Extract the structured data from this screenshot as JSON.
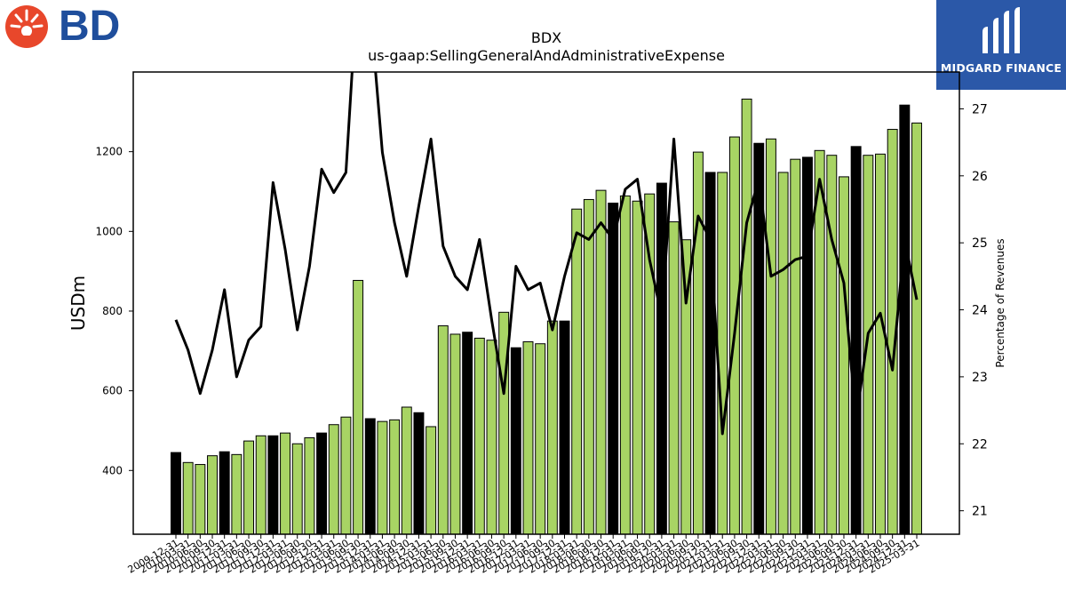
{
  "brand": {
    "company_logo_text": "BD",
    "publisher_logo_text": "MIDGARD FINANCE"
  },
  "colors": {
    "bar_fill": "#a8d464",
    "bar_highlight_fill": "#000000",
    "bar_stroke": "#000000",
    "line": "#000000",
    "publisher_bg": "#2b58a8",
    "company_text": "#1f4e9c",
    "company_icon": "#e8472b"
  },
  "chart_data": {
    "type": "bar",
    "title": "BDX",
    "subtitle": "us-gaap:SellingGeneralAndAdministrativeExpense",
    "ylabel": "USDm",
    "y2label": "Percentage of Revenues",
    "ylim": [
      240,
      1400
    ],
    "y2lim": [
      20.65,
      27.55
    ],
    "yticks": [
      400,
      600,
      800,
      1000,
      1200
    ],
    "y2ticks": [
      21,
      22,
      23,
      24,
      25,
      26,
      27
    ],
    "categories": [
      "2009-12-31",
      "2010-03-31",
      "2010-06-30",
      "2010-09-30",
      "2010-12-31",
      "2011-03-31",
      "2011-06-30",
      "2011-09-30",
      "2011-12-31",
      "2012-03-31",
      "2012-06-30",
      "2012-09-30",
      "2012-12-31",
      "2013-03-31",
      "2013-06-30",
      "2013-09-30",
      "2013-12-31",
      "2014-03-31",
      "2014-06-30",
      "2014-09-30",
      "2014-12-31",
      "2015-03-31",
      "2015-06-30",
      "2015-09-30",
      "2015-12-31",
      "2016-03-31",
      "2016-06-30",
      "2016-09-30",
      "2016-12-31",
      "2017-03-31",
      "2017-06-30",
      "2017-09-30",
      "2017-12-31",
      "2018-03-31",
      "2018-06-30",
      "2018-09-30",
      "2018-12-31",
      "2019-03-31",
      "2019-06-30",
      "2019-09-30",
      "2019-12-31",
      "2020-03-31",
      "2020-06-30",
      "2020-09-30",
      "2020-12-31",
      "2021-03-31",
      "2021-06-30",
      "2021-09-30",
      "2021-12-31",
      "2022-03-31",
      "2022-06-30",
      "2022-09-30",
      "2022-12-31",
      "2023-03-31",
      "2023-06-30",
      "2023-09-30",
      "2023-12-31",
      "2024-03-31",
      "2024-06-30",
      "2024-09-30",
      "2024-12-31",
      "2025-03-31"
    ],
    "xtick_labels": [
      "2009-12-31",
      "2010-03-31",
      "2010-06-30",
      "2010-09-30",
      "2010-12-31",
      "2011-03-31",
      "2011-06-30",
      "2011-09-30",
      "2011-12-31",
      "2012-03-31",
      "2012-06-30",
      "2012-09-30",
      "2012-12-31",
      "2013-03-31",
      "2013-06-30",
      "2013-09-30",
      "2013-12-31",
      "2014-03-31",
      "2014-06-30",
      "2014-09-30",
      "2014-12-31",
      "2015-03-31",
      "2015-06-30",
      "2015-09-30",
      "2015-12-31",
      "2016-03-31",
      "2016-06-30",
      "2016-09-30",
      "2016-12-31",
      "2017-03-31",
      "2017-06-30",
      "2017-09-30",
      "2017-12-31",
      "2018-03-31",
      "2018-06-30",
      "2018-09-30",
      "2018-12-31",
      "2019-03-31",
      "2019-06-30",
      "2019-09-30",
      "2019-12-31",
      "2020-03-31",
      "2020-06-30",
      "2020-09-30",
      "2020-12-31",
      "2021-03-31",
      "2021-06-30",
      "2021-09-30",
      "2021-12-31",
      "2022-03-31",
      "2022-06-30",
      "2022-09-30",
      "2022-12-31",
      "2023-03-31",
      "2023-06-30",
      "2023-09-30",
      "2023-12-31",
      "2024-03-31",
      "2024-06-30",
      "2024-09-30",
      "2024-12-31",
      "2025-03-31"
    ],
    "series": [
      {
        "axis": "left",
        "kind": "bar",
        "values": [
          445,
          420,
          415,
          437,
          447,
          440,
          474,
          487,
          487,
          494,
          467,
          482,
          494,
          515,
          534,
          877,
          530,
          523,
          527,
          559,
          545,
          510,
          763,
          742,
          747,
          732,
          727,
          797,
          708,
          723,
          718,
          775,
          775,
          1056,
          1080,
          1103,
          1071,
          1089,
          1076,
          1094,
          1121,
          1024,
          979,
          1199,
          1148,
          1148,
          1237,
          1332,
          1221,
          1232,
          1148,
          1181,
          1186,
          1203,
          1191,
          1137,
          1213,
          1191,
          1194,
          1256,
          1317,
          1272
        ],
        "highlight": [
          1,
          0,
          0,
          0,
          1,
          0,
          0,
          0,
          1,
          0,
          0,
          0,
          1,
          0,
          0,
          0,
          1,
          0,
          0,
          0,
          1,
          0,
          0,
          0,
          1,
          0,
          0,
          0,
          1,
          0,
          0,
          0,
          1,
          0,
          0,
          0,
          1,
          0,
          0,
          0,
          1,
          0,
          0,
          0,
          1,
          0,
          0,
          0,
          1,
          0,
          0,
          0,
          1,
          0,
          0,
          0,
          1,
          0,
          0,
          0,
          1,
          0
        ]
      },
      {
        "axis": "right",
        "kind": "line",
        "values": [
          23.85,
          23.4,
          22.75,
          23.4,
          24.3,
          23.0,
          23.55,
          23.75,
          25.9,
          24.9,
          23.7,
          24.65,
          26.1,
          25.75,
          26.05,
          29.0,
          28.5,
          26.35,
          25.3,
          24.5,
          25.55,
          26.55,
          24.95,
          24.5,
          24.3,
          25.05,
          23.85,
          22.75,
          24.65,
          24.3,
          24.4,
          23.7,
          24.5,
          25.15,
          25.05,
          25.3,
          25.05,
          25.8,
          25.95,
          24.75,
          23.9,
          26.55,
          24.1,
          25.4,
          25.05,
          22.15,
          23.65,
          25.3,
          25.95,
          24.5,
          24.6,
          24.75,
          24.8,
          25.95,
          25.05,
          24.4,
          22.35,
          23.65,
          23.95,
          23.1,
          25.05,
          24.15
        ]
      }
    ]
  }
}
